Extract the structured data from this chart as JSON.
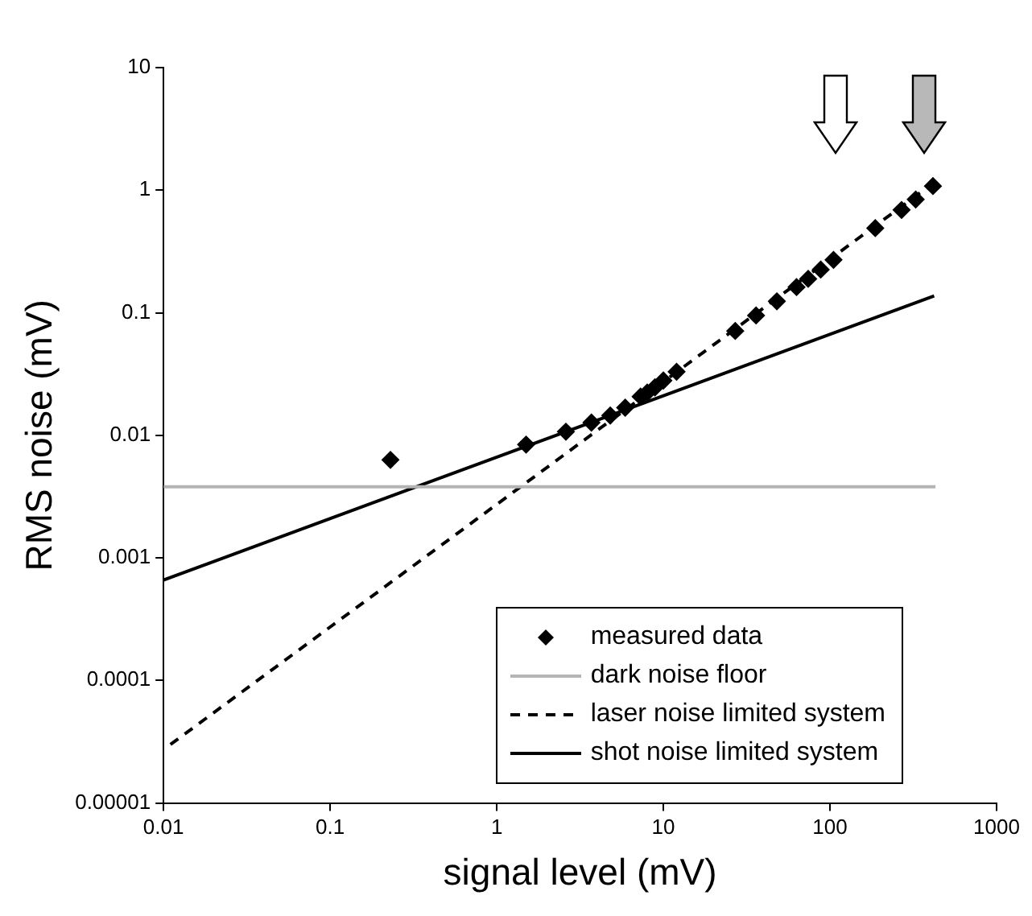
{
  "chart_data": {
    "type": "scatter",
    "xlabel": "signal level (mV)",
    "ylabel": "RMS noise (mV)",
    "log": "xy",
    "xlim": [
      0.01,
      1000
    ],
    "ylim": [
      1e-05,
      10
    ],
    "xticks": [
      0.01,
      0.1,
      1,
      10,
      100,
      1000
    ],
    "yticks": [
      {
        "value": 1e-05,
        "label": "0.00001"
      },
      0.0001,
      0.001,
      0.01,
      0.1,
      1,
      10
    ],
    "grid": false,
    "legend": "bottom right",
    "series": [
      {
        "name": "measured data",
        "type": "scatter",
        "marker": "diamond",
        "color": "#000000",
        "x": [
          0.23,
          1.5,
          2.6,
          3.7,
          4.8,
          5.9,
          7.3,
          8,
          8.9,
          10,
          12,
          27,
          36,
          48,
          63,
          74,
          88,
          105,
          187,
          269,
          327,
          415
        ],
        "values": [
          0.0063,
          0.0084,
          0.0107,
          0.0127,
          0.0145,
          0.0168,
          0.0207,
          0.0223,
          0.0246,
          0.028,
          0.033,
          0.071,
          0.095,
          0.124,
          0.162,
          0.189,
          0.225,
          0.27,
          0.49,
          0.69,
          0.84,
          1.08
        ]
      },
      {
        "name": "dark noise floor",
        "type": "line",
        "marker": "none",
        "line_style": "solid",
        "color": "#b4b4b4",
        "x": [
          0.01,
          430
        ],
        "values": [
          0.0038,
          0.0038
        ]
      },
      {
        "name": "laser noise limited system",
        "type": "line",
        "marker": "none",
        "line_style": "dashed",
        "color": "#000000",
        "x": [
          0.011,
          420
        ],
        "values": [
          3e-05,
          1.15
        ]
      },
      {
        "name": "shot noise limited system",
        "type": "line",
        "marker": "none",
        "line_style": "solid",
        "color": "#000000",
        "x": [
          0.01,
          422
        ],
        "values": [
          0.00066,
          0.137
        ]
      }
    ]
  }
}
